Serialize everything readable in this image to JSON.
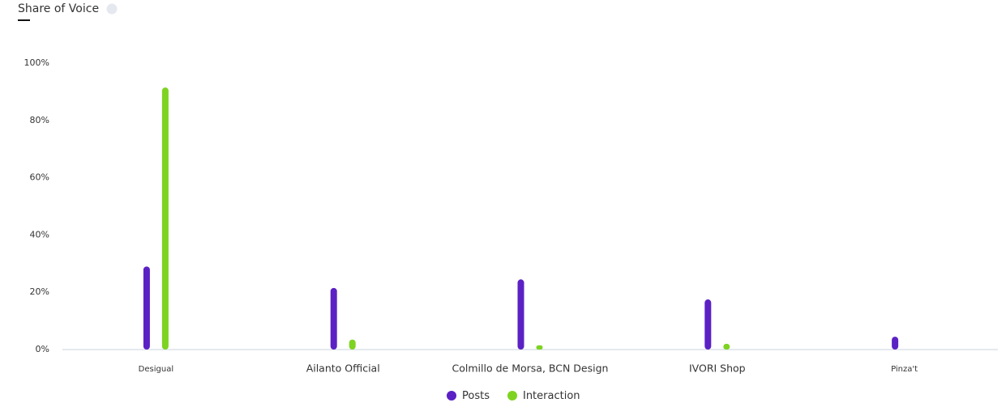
{
  "chart_data": {
    "type": "bar",
    "title": "Share of Voice",
    "info": "i",
    "categories": [
      "Desigual",
      "Ailanto Official",
      "Colmillo de Morsa, BCN Design",
      "IVORI Shop",
      "Pinza't"
    ],
    "series": [
      {
        "name": "Posts",
        "color": "#5b21c4",
        "values": [
          29,
          21.5,
          24.5,
          17.5,
          4.5
        ]
      },
      {
        "name": "Interaction",
        "color": "#7ed321",
        "values": [
          91.5,
          3.5,
          1.5,
          2,
          0
        ]
      }
    ],
    "ylim": [
      0,
      100
    ],
    "yticks": [
      {
        "value": 0,
        "label": "0%"
      },
      {
        "value": 20,
        "label": "20%"
      },
      {
        "value": 40,
        "label": "40%"
      },
      {
        "value": 60,
        "label": "60%"
      },
      {
        "value": 80,
        "label": "80%"
      },
      {
        "value": 100,
        "label": "100%"
      }
    ],
    "grid": false,
    "legend": "bottom"
  }
}
